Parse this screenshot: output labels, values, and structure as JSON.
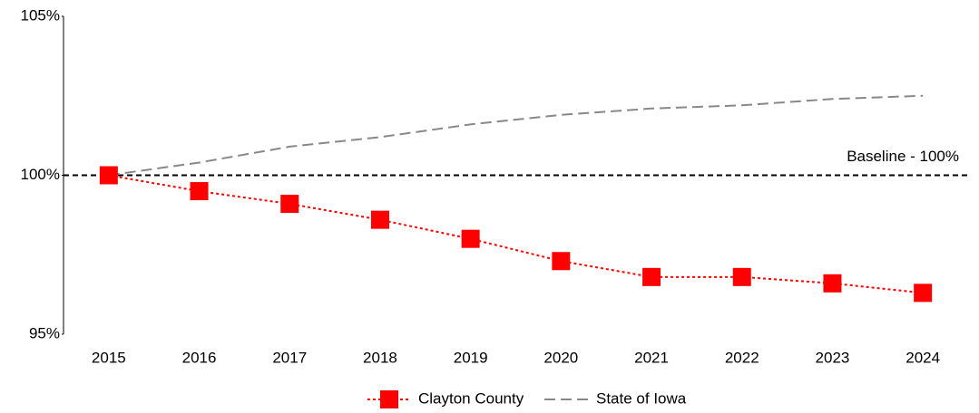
{
  "chart_data": {
    "type": "line",
    "categories": [
      "2015",
      "2016",
      "2017",
      "2018",
      "2019",
      "2020",
      "2021",
      "2022",
      "2023",
      "2024"
    ],
    "series": [
      {
        "name": "Clayton County",
        "color": "#ff0000",
        "values": [
          100,
          99.5,
          99.1,
          98.6,
          98.0,
          97.3,
          96.8,
          96.8,
          96.6,
          96.3
        ]
      },
      {
        "name": "State of Iowa",
        "color": "#888888",
        "values": [
          100,
          100.4,
          100.9,
          101.2,
          101.6,
          101.9,
          102.1,
          102.2,
          102.4,
          102.5
        ]
      }
    ],
    "ylim": [
      95,
      105
    ],
    "yticks": [
      {
        "value": 95,
        "label": "95%"
      },
      {
        "value": 100,
        "label": "100%"
      },
      {
        "value": 105,
        "label": "105%"
      }
    ],
    "baseline": {
      "value": 100,
      "label": "Baseline - 100%"
    },
    "legend": "bottom"
  }
}
